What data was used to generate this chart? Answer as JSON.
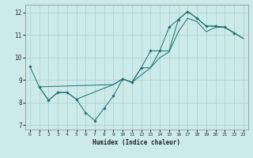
{
  "xlabel": "Humidex (Indice chaleur)",
  "bg_color": "#cceaea",
  "grid_color": "#aacece",
  "line_color": "#1a6e6e",
  "xlim": [
    -0.5,
    23.5
  ],
  "ylim": [
    6.8,
    12.35
  ],
  "xticks": [
    0,
    1,
    2,
    3,
    4,
    5,
    6,
    7,
    8,
    9,
    10,
    11,
    12,
    13,
    14,
    15,
    16,
    17,
    18,
    19,
    20,
    21,
    22,
    23
  ],
  "yticks": [
    7,
    8,
    9,
    10,
    11,
    12
  ],
  "series_marked": {
    "x": [
      0,
      1,
      2,
      3,
      4,
      5,
      6,
      7,
      8,
      9,
      10,
      11,
      12,
      13,
      14,
      15,
      16,
      17,
      18,
      19,
      20,
      21,
      22
    ],
    "y": [
      9.6,
      8.7,
      8.1,
      8.45,
      8.45,
      8.15,
      7.55,
      7.2,
      7.75,
      8.3,
      9.05,
      8.9,
      9.55,
      10.3,
      10.3,
      11.35,
      11.7,
      12.05,
      11.75,
      11.4,
      11.4,
      11.35,
      11.1
    ]
  },
  "series_steep": {
    "x": [
      1,
      2,
      3,
      4,
      5,
      9,
      10,
      11,
      12,
      13,
      14,
      15,
      16,
      17,
      18,
      19,
      20,
      21,
      22,
      23
    ],
    "y": [
      8.7,
      8.1,
      8.45,
      8.45,
      8.15,
      8.8,
      9.05,
      8.9,
      9.55,
      9.55,
      10.3,
      10.3,
      11.7,
      12.05,
      11.75,
      11.4,
      11.4,
      11.35,
      11.1,
      10.85
    ]
  },
  "series_smooth": {
    "x": [
      1,
      9,
      10,
      11,
      13,
      14,
      15,
      16,
      17,
      18,
      19,
      20,
      21,
      22,
      23
    ],
    "y": [
      8.7,
      8.8,
      9.05,
      8.9,
      9.55,
      10.0,
      10.25,
      11.15,
      11.75,
      11.6,
      11.15,
      11.35,
      11.35,
      11.1,
      10.85
    ]
  }
}
